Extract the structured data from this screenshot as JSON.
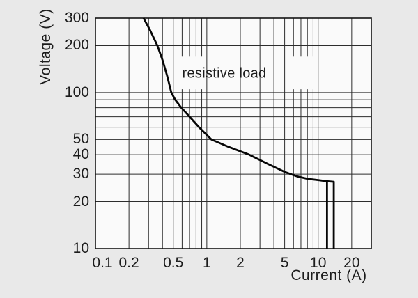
{
  "figure": {
    "background": "#e9e9e9",
    "plot_background": "#fafafa",
    "grid_color": "#2d2d2d",
    "frame_color": "#141414",
    "curve_color": "#060606",
    "text_color": "#1c1c1c"
  },
  "chart_data": {
    "type": "line",
    "title": "",
    "xlabel": "Current (A)",
    "ylabel": "Voltage (V)",
    "x_scale": "log",
    "y_scale": "log",
    "xlim": [
      0.1,
      30
    ],
    "ylim": [
      10,
      300
    ],
    "grid_on": true,
    "x_ticks": [
      {
        "v": 0.1,
        "label": "0.1",
        "dx": 10
      },
      {
        "v": 0.2,
        "label": "0.2",
        "dx": 0
      },
      {
        "v": 0.5,
        "label": "0.5",
        "dx": 0
      },
      {
        "v": 1,
        "label": "1",
        "dx": 0
      },
      {
        "v": 2,
        "label": "2",
        "dx": 0
      },
      {
        "v": 5,
        "label": "5",
        "dx": 0
      },
      {
        "v": 10,
        "label": "10",
        "dx": 0
      },
      {
        "v": 20,
        "label": "20",
        "dx": 0
      }
    ],
    "y_ticks": [
      {
        "v": 300,
        "label": "300"
      },
      {
        "v": 200,
        "label": "200"
      },
      {
        "v": 100,
        "label": "100"
      },
      {
        "v": 50,
        "label": "50"
      },
      {
        "v": 40,
        "label": "40"
      },
      {
        "v": 30,
        "label": "30"
      },
      {
        "v": 20,
        "label": "20"
      },
      {
        "v": 10,
        "label": "10"
      }
    ],
    "grid": {
      "v_full": [
        0.2,
        0.3,
        0.4,
        0.5,
        1,
        2,
        3,
        4,
        5,
        10,
        20
      ],
      "v_banded_values": [
        0.6,
        0.7,
        0.8,
        0.9,
        6,
        7,
        8,
        9
      ],
      "v_bands": [
        [
          300,
          170
        ],
        [
          105,
          10
        ]
      ],
      "h_full": [
        200,
        100,
        90,
        80,
        70,
        60,
        50,
        40,
        30,
        20
      ]
    },
    "annotation": {
      "text": "resistive load",
      "x": 1.43,
      "y": 132
    },
    "series": [
      {
        "name": "resistive load",
        "points": [
          [
            0.27,
            300
          ],
          [
            0.31,
            250
          ],
          [
            0.36,
            200
          ],
          [
            0.4,
            162
          ],
          [
            0.44,
            128
          ],
          [
            0.48,
            100
          ],
          [
            0.52,
            90
          ],
          [
            0.59,
            80
          ],
          [
            0.7,
            70
          ],
          [
            0.85,
            60
          ],
          [
            1.1,
            50
          ],
          [
            1.55,
            45
          ],
          [
            2.4,
            40
          ],
          [
            3.5,
            35
          ],
          [
            5,
            31
          ],
          [
            6.5,
            29
          ],
          [
            8,
            28
          ],
          [
            10,
            27.5
          ],
          [
            12,
            27
          ],
          [
            13.8,
            26.8
          ],
          [
            13.8,
            10
          ]
        ]
      }
    ],
    "extra_segments": [
      {
        "x": 12,
        "y_from": 26.9,
        "y_to": 10
      }
    ]
  }
}
